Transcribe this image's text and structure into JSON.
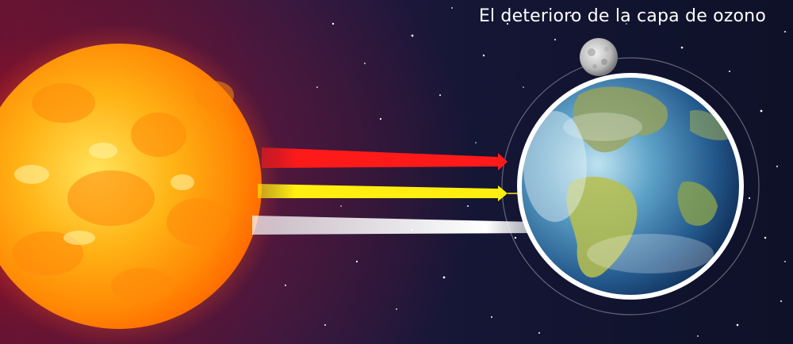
{
  "title": "El deterioro de la capa de ozono",
  "colors": {
    "ray_red": "#ff1a1a",
    "ray_yellow": "#ffee10",
    "ray_white": "#ffffff",
    "earth_ring": "#ffffff",
    "sun_core": "#ffd21a"
  },
  "elements": {
    "sun": "sun-icon",
    "earth": "earth-icon",
    "moon": "moon-icon",
    "atmosphere": "ozone-layer-ring"
  }
}
